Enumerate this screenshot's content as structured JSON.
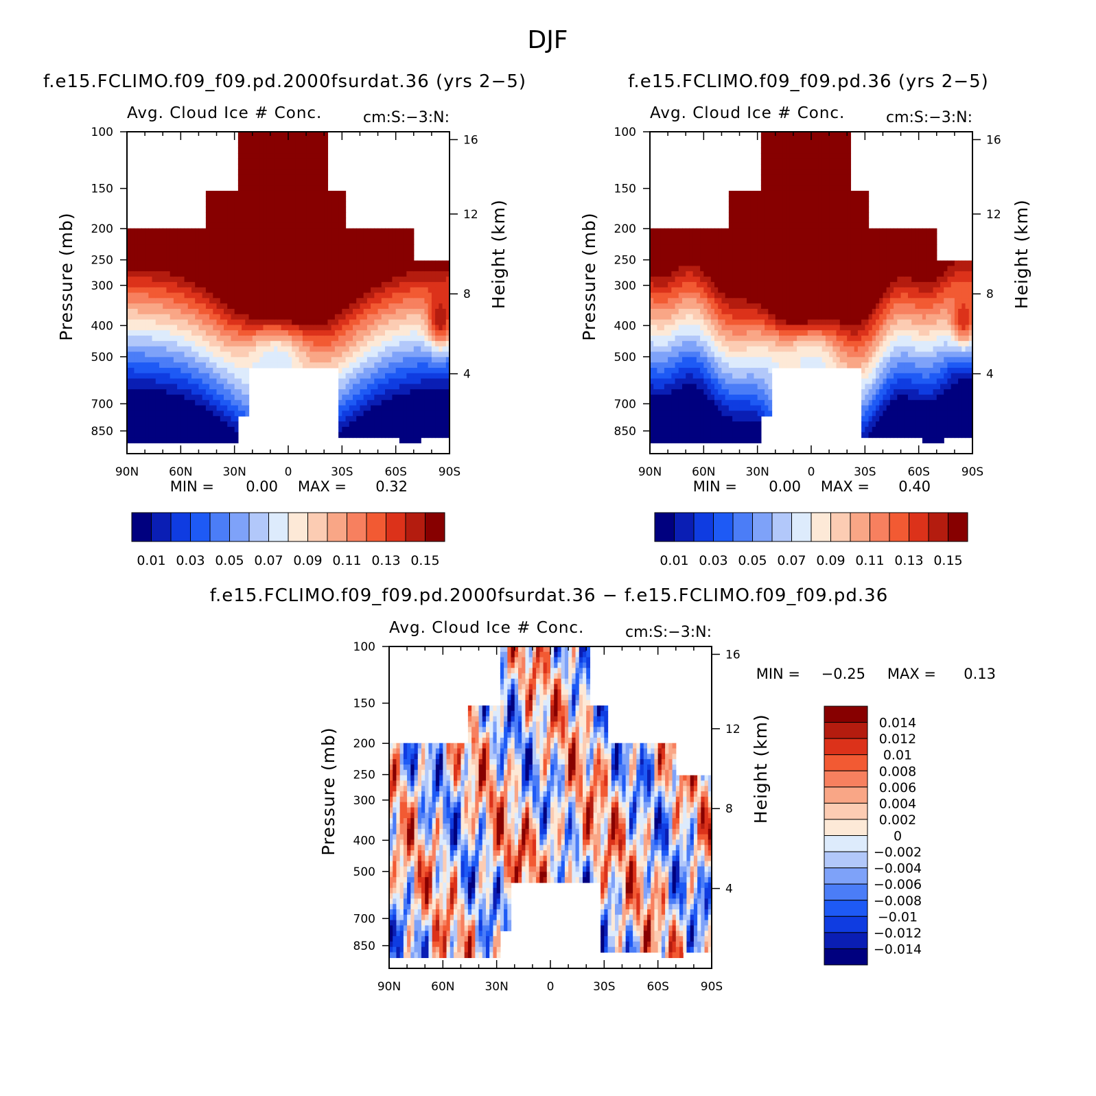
{
  "figure_title": "DJF",
  "chart_data": [
    {
      "type": "heatmap",
      "title": "f.e15.FCLIMO.f09_f09.pd.2000fsurdat.36 (yrs 2−5)",
      "subtitle_left": "Avg. Cloud Ice # Conc.",
      "subtitle_right": "cm:S:−3:N:",
      "xlabel": "",
      "ylabel": "Pressure (mb)",
      "ylabel_right": "Height (km)",
      "x_ticks": [
        "90N",
        "60N",
        "30N",
        "0",
        "30S",
        "60S",
        "90S"
      ],
      "y_ticks": [
        "100",
        "150",
        "200",
        "250",
        "300",
        "400",
        "500",
        "700",
        "850"
      ],
      "y_ticks_right": [
        "16",
        "12",
        "8",
        "4"
      ],
      "min_label": "MIN =",
      "min_value": "0.00",
      "max_label": "MAX =",
      "max_value": "0.32",
      "min": 0.0,
      "max": 0.32,
      "levels": [
        0.01,
        0.02,
        0.03,
        0.04,
        0.05,
        0.06,
        0.07,
        0.08,
        0.09,
        0.1,
        0.11,
        0.12,
        0.13,
        0.14,
        0.15
      ],
      "colorbar_labels": [
        "0.01",
        "0.03",
        "0.05",
        "0.07",
        "0.09",
        "0.11",
        "0.13",
        "0.15"
      ]
    },
    {
      "type": "heatmap",
      "title": "f.e15.FCLIMO.f09_f09.pd.36 (yrs 2−5)",
      "subtitle_left": "Avg. Cloud Ice # Conc.",
      "subtitle_right": "cm:S:−3:N:",
      "xlabel": "",
      "ylabel": "Pressure (mb)",
      "ylabel_right": "Height (km)",
      "x_ticks": [
        "90N",
        "60N",
        "30N",
        "0",
        "30S",
        "60S",
        "90S"
      ],
      "y_ticks": [
        "100",
        "150",
        "200",
        "250",
        "300",
        "400",
        "500",
        "700",
        "850"
      ],
      "y_ticks_right": [
        "16",
        "12",
        "8",
        "4"
      ],
      "min_label": "MIN =",
      "min_value": "0.00",
      "max_label": "MAX =",
      "max_value": "0.40",
      "min": 0.0,
      "max": 0.4,
      "levels": [
        0.01,
        0.02,
        0.03,
        0.04,
        0.05,
        0.06,
        0.07,
        0.08,
        0.09,
        0.1,
        0.11,
        0.12,
        0.13,
        0.14,
        0.15
      ],
      "colorbar_labels": [
        "0.01",
        "0.03",
        "0.05",
        "0.07",
        "0.09",
        "0.11",
        "0.13",
        "0.15"
      ]
    },
    {
      "type": "heatmap",
      "title": "f.e15.FCLIMO.f09_f09.pd.2000fsurdat.36 − f.e15.FCLIMO.f09_f09.pd.36",
      "subtitle_left": "Avg. Cloud Ice # Conc.",
      "subtitle_right": "cm:S:−3:N:",
      "xlabel": "",
      "ylabel": "Pressure (mb)",
      "ylabel_right": "Height (km)",
      "x_ticks": [
        "90N",
        "60N",
        "30N",
        "0",
        "30S",
        "60S",
        "90S"
      ],
      "y_ticks": [
        "100",
        "150",
        "200",
        "250",
        "300",
        "400",
        "500",
        "700",
        "850"
      ],
      "y_ticks_right": [
        "16",
        "12",
        "8",
        "4"
      ],
      "min_label": "MIN =",
      "min_value": "−0.25",
      "max_label": "MAX =",
      "max_value": "0.13",
      "min": -0.25,
      "max": 0.13,
      "levels": [
        -0.014,
        -0.012,
        -0.01,
        -0.008,
        -0.006,
        -0.004,
        -0.002,
        0,
        0.002,
        0.004,
        0.006,
        0.008,
        0.01,
        0.012,
        0.014
      ],
      "colorbar_labels": [
        "0.014",
        "0.012",
        "0.01",
        "0.008",
        "0.006",
        "0.004",
        "0.002",
        "0",
        "−0.002",
        "−0.004",
        "−0.006",
        "−0.008",
        "−0.01",
        "−0.012",
        "−0.014"
      ]
    }
  ],
  "colors": {
    "palette": [
      "#00007f",
      "#0a1eb4",
      "#0f3ce1",
      "#1e5af5",
      "#4b7df7",
      "#7ea2f9",
      "#b2c8fa",
      "#ddebfc",
      "#fde9d7",
      "#fcccb3",
      "#f9a686",
      "#f7805f",
      "#f25a33",
      "#dc321a",
      "#b41c0f",
      "#870000"
    ],
    "axis": "#000000",
    "background": "#ffffff"
  }
}
